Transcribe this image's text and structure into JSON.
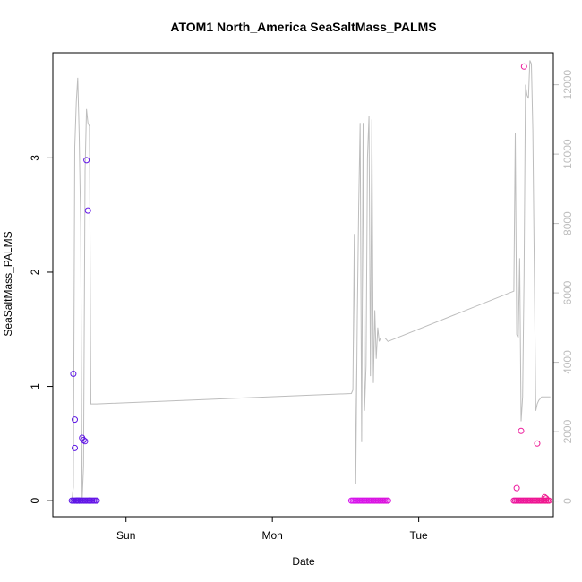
{
  "chart_data": {
    "type": "scatter",
    "title": "ATOM1 North_America SeaSaltMass_PALMS",
    "xlabel": "Date",
    "ylabel": "SeaSaltMass_PALMS",
    "x_ticks": [
      {
        "t": 1.0,
        "label": "Sun"
      },
      {
        "t": 2.0,
        "label": "Mon"
      },
      {
        "t": 3.0,
        "label": "Tue"
      }
    ],
    "xlim": [
      0.5,
      3.92
    ],
    "ylim": [
      -0.14,
      3.92
    ],
    "y_ticks": [
      0,
      1,
      2,
      3
    ],
    "y2lim": [
      -450,
      12920
    ],
    "y2_ticks": [
      0,
      2000,
      4000,
      6000,
      8000,
      10000,
      12000
    ],
    "grid": false,
    "colors": {
      "frame": "#000000",
      "secondary_line": "#bdbdbd",
      "secondary_axis": "#bdbdbd",
      "point_start": "#5a16e6",
      "point_mid": "#d614f0",
      "point_end": "#f0168c"
    },
    "secondary_series": {
      "axis": "right",
      "x": [
        0.63,
        0.64,
        0.65,
        0.66,
        0.67,
        0.68,
        0.69,
        0.7,
        0.71,
        0.72,
        0.73,
        0.74,
        0.75,
        0.76,
        0.77,
        0.78,
        0.79,
        0.8,
        2.54,
        2.55,
        2.56,
        2.57,
        2.58,
        2.59,
        2.6,
        2.61,
        2.62,
        2.63,
        2.64,
        2.65,
        2.66,
        2.67,
        2.68,
        2.69,
        2.7,
        2.71,
        2.72,
        2.73,
        2.74,
        2.75,
        2.76,
        2.77,
        2.78,
        2.79,
        3.65,
        3.66,
        3.67,
        3.68,
        3.69,
        3.7,
        3.71,
        3.72,
        3.73,
        3.74,
        3.75,
        3.76,
        3.77,
        3.78,
        3.8,
        3.81,
        3.82,
        3.83,
        3.84,
        3.85,
        3.86,
        3.87,
        3.88,
        3.89,
        3.9
      ],
      "y": [
        0,
        400,
        10200,
        11500,
        12200,
        10600,
        8000,
        0,
        1000,
        9500,
        11300,
        10900,
        10800,
        2800,
        2800,
        2800,
        2800,
        2800,
        3100,
        3200,
        7700,
        500,
        5200,
        8500,
        10900,
        1700,
        10900,
        2600,
        3900,
        9900,
        11100,
        3600,
        11000,
        3400,
        5500,
        4100,
        5000,
        4600,
        4700,
        4700,
        4700,
        4700,
        4650,
        4600,
        6050,
        10600,
        4800,
        4700,
        7000,
        2300,
        3000,
        6500,
        12000,
        11700,
        11600,
        12700,
        12600,
        10700,
        2600,
        2800,
        2900,
        2950,
        3000,
        3000,
        3000,
        3000,
        3000,
        3000,
        3000
      ]
    },
    "series": [
      {
        "x": [
          0.63,
          0.64,
          0.65,
          0.66,
          0.67,
          0.68,
          0.69,
          0.7,
          0.71,
          0.72,
          0.73,
          0.74,
          0.75,
          0.76,
          0.77,
          0.78,
          0.79,
          0.8,
          0.64,
          0.65,
          0.65,
          0.66,
          0.67,
          0.68,
          0.7,
          0.71,
          0.72,
          0.73,
          0.74,
          0.75
        ],
        "y": [
          0,
          0,
          0,
          0,
          0,
          0,
          0,
          0,
          0,
          0,
          0,
          0,
          0,
          0,
          0,
          0,
          0,
          0,
          1.11,
          0.71,
          0.46,
          0,
          0,
          0,
          0.55,
          0.53,
          0.52,
          2.98,
          2.54,
          0
        ]
      },
      {
        "x": [
          2.54,
          2.55,
          2.56,
          2.57,
          2.58,
          2.59,
          2.6,
          2.61,
          2.62,
          2.63,
          2.64,
          2.65,
          2.66,
          2.67,
          2.68,
          2.69,
          2.7,
          2.71,
          2.72,
          2.73,
          2.74,
          2.75,
          2.76,
          2.77,
          2.78,
          2.79
        ],
        "y": [
          0,
          0,
          0,
          0,
          0,
          0,
          0,
          0,
          0,
          0,
          0,
          0,
          0,
          0,
          0,
          0,
          0,
          0,
          0,
          0,
          0,
          0,
          0,
          0,
          0,
          0
        ]
      },
      {
        "x": [
          3.65,
          3.66,
          3.67,
          3.68,
          3.69,
          3.7,
          3.71,
          3.72,
          3.73,
          3.74,
          3.75,
          3.76,
          3.77,
          3.78,
          3.79,
          3.8,
          3.81,
          3.82,
          3.83,
          3.84,
          3.85,
          3.86,
          3.87,
          3.88,
          3.89,
          3.67,
          3.7,
          3.72,
          3.81,
          3.86,
          3.87
        ],
        "y": [
          0,
          0,
          0,
          0,
          0,
          0,
          0,
          0,
          0,
          0,
          0,
          0,
          0,
          0,
          0,
          0,
          0,
          0,
          0,
          0,
          0,
          0,
          0,
          0,
          0,
          0.11,
          0.61,
          3.8,
          0.5,
          0.03,
          0.02
        ]
      }
    ]
  }
}
